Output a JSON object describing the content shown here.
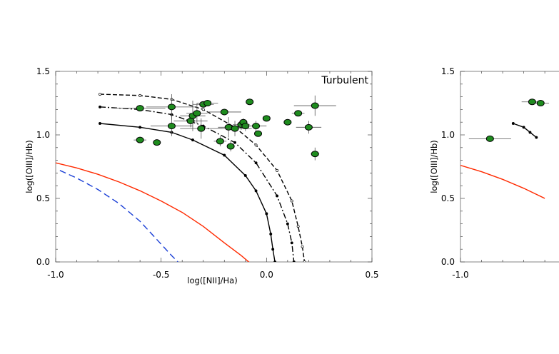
{
  "chart_data": [
    {
      "type": "scatter",
      "title": "Turbulent",
      "xlabel": "log([NII]/Ha)",
      "ylabel": "log([OIII]/Hb)",
      "xlim": [
        -1.0,
        0.5
      ],
      "ylim": [
        0.0,
        1.5
      ],
      "x_ticks": [
        "-1.0",
        "-0.5",
        "0.0",
        "0.5"
      ],
      "y_ticks": [
        "0.0",
        "0.5",
        "1.0",
        "1.5"
      ],
      "reference_curves": [
        {
          "name": "red-demarcation",
          "color": "#ff2a00",
          "style": "solid",
          "x": [
            -1.0,
            -0.9,
            -0.8,
            -0.7,
            -0.6,
            -0.5,
            -0.4,
            -0.3,
            -0.2,
            -0.12,
            -0.07,
            -0.05
          ],
          "y": [
            0.78,
            0.74,
            0.69,
            0.63,
            0.56,
            0.48,
            0.39,
            0.28,
            0.15,
            0.05,
            -0.02,
            -0.05
          ]
        },
        {
          "name": "blue-demarcation",
          "color": "#1a3fd6",
          "style": "dashed",
          "x": [
            -0.98,
            -0.9,
            -0.8,
            -0.7,
            -0.6,
            -0.5,
            -0.45,
            -0.42
          ],
          "y": [
            0.72,
            0.66,
            0.57,
            0.46,
            0.32,
            0.14,
            0.05,
            0.0
          ]
        }
      ],
      "model_curves": [
        {
          "name": "solid",
          "color": "#000000",
          "style": "solid",
          "x": [
            -0.79,
            -0.6,
            -0.45,
            -0.35,
            -0.2,
            -0.1,
            -0.05,
            0.0,
            0.02,
            0.03,
            0.04
          ],
          "y": [
            1.09,
            1.06,
            1.02,
            0.96,
            0.84,
            0.68,
            0.56,
            0.38,
            0.22,
            0.1,
            0.0
          ]
        },
        {
          "name": "dash-dot",
          "color": "#000000",
          "style": "dashdot",
          "x": [
            -0.79,
            -0.6,
            -0.45,
            -0.3,
            -0.15,
            -0.05,
            0.05,
            0.1,
            0.12,
            0.13
          ],
          "y": [
            1.22,
            1.2,
            1.16,
            1.07,
            0.94,
            0.78,
            0.52,
            0.3,
            0.15,
            0.0
          ]
        },
        {
          "name": "dashed",
          "color": "#000000",
          "style": "dashed",
          "x": [
            -0.79,
            -0.6,
            -0.45,
            -0.3,
            -0.15,
            -0.05,
            0.05,
            0.12,
            0.15,
            0.17,
            0.18
          ],
          "y": [
            1.32,
            1.31,
            1.28,
            1.2,
            1.06,
            0.92,
            0.72,
            0.48,
            0.28,
            0.12,
            0.0
          ]
        }
      ],
      "points": {
        "color": "#1e8c1e",
        "x": [
          -0.6,
          -0.6,
          -0.52,
          -0.45,
          -0.45,
          -0.36,
          -0.35,
          -0.33,
          -0.31,
          -0.3,
          -0.28,
          -0.22,
          -0.2,
          -0.18,
          -0.17,
          -0.15,
          -0.12,
          -0.11,
          -0.1,
          -0.08,
          -0.05,
          -0.04,
          0.0,
          0.1,
          0.15,
          0.2,
          0.23,
          0.23
        ],
        "y": [
          0.96,
          1.21,
          0.94,
          1.07,
          1.22,
          1.11,
          1.15,
          1.17,
          1.05,
          1.24,
          1.25,
          0.95,
          1.18,
          1.06,
          0.91,
          1.05,
          1.08,
          1.1,
          1.07,
          1.26,
          1.07,
          1.01,
          1.13,
          1.1,
          1.17,
          1.06,
          1.23,
          0.85
        ],
        "xerr": [
          0.03,
          0.12,
          0.0,
          0.1,
          0.12,
          0.08,
          0.06,
          0.05,
          0.1,
          0.05,
          0.05,
          0.03,
          0.08,
          0.05,
          0.0,
          0.08,
          0.04,
          0.02,
          0.03,
          0.0,
          0.05,
          0.0,
          0.0,
          0.0,
          0.03,
          0.06,
          0.1,
          0.02
        ],
        "yerr": [
          0.0,
          0.0,
          0.0,
          0.08,
          0.1,
          0.05,
          0.12,
          0.08,
          0.08,
          0.0,
          0.0,
          0.04,
          0.0,
          0.08,
          0.04,
          0.06,
          0.04,
          0.03,
          0.04,
          0.0,
          0.04,
          0.0,
          0.0,
          0.0,
          0.0,
          0.05,
          0.08,
          0.05
        ]
      }
    },
    {
      "type": "scatter",
      "title": "",
      "xlabel": "",
      "ylabel": "log([OIII]/Hb)",
      "xlim": [
        -1.0,
        0.5
      ],
      "ylim": [
        0.0,
        1.5
      ],
      "x_ticks": [
        "-1.0"
      ],
      "y_ticks": [
        "0.0",
        "0.5",
        "1.0",
        "1.5"
      ],
      "reference_curves": [
        {
          "name": "red-demarcation",
          "color": "#ff2a00",
          "style": "solid",
          "x": [
            -1.0,
            -0.9,
            -0.8,
            -0.7,
            -0.6
          ],
          "y": [
            0.76,
            0.71,
            0.65,
            0.58,
            0.5
          ]
        }
      ],
      "model_curves": [
        {
          "name": "solid",
          "color": "#000000",
          "style": "solid",
          "x": [
            -0.75,
            -0.7,
            -0.67,
            -0.64
          ],
          "y": [
            1.09,
            1.06,
            1.02,
            0.98
          ]
        },
        {
          "name": "dotted",
          "color": "#000000",
          "style": "dashed",
          "x": [
            -0.66,
            -0.62
          ],
          "y": [
            1.26,
            1.24
          ]
        }
      ],
      "points": {
        "color": "#1e8c1e",
        "x": [
          -0.86,
          -0.66,
          -0.62
        ],
        "y": [
          0.97,
          1.26,
          1.25
        ],
        "xerr": [
          0.1,
          0.05,
          0.04
        ],
        "yerr": [
          0.0,
          0.0,
          0.0
        ]
      }
    }
  ]
}
